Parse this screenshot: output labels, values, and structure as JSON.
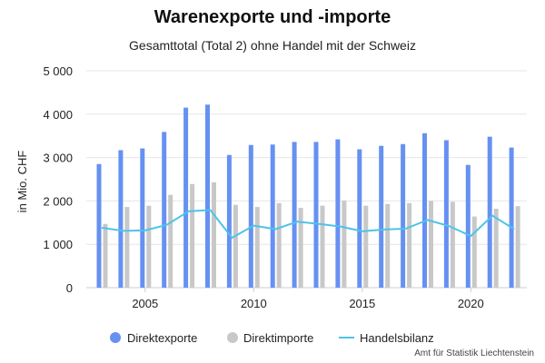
{
  "title": "Warenexporte und -importe",
  "subtitle": "Gesamttotal (Total 2) ohne Handel mit der Schweiz",
  "source": "Amt für Statistik Liechtenstein",
  "colors": {
    "exports": "#6691f2",
    "imports": "#c8c8c8",
    "balance": "#4fc3e8",
    "grid": "#e6e6e6",
    "axis_text": "#222222"
  },
  "chart_data": {
    "type": "bar",
    "ylabel": "in Mio. CHF",
    "xlabel": "",
    "ylim": [
      0,
      5000
    ],
    "yticks": [
      0,
      1000,
      2000,
      3000,
      4000,
      5000
    ],
    "ytick_labels": [
      "0",
      "1 000",
      "2 000",
      "3 000",
      "4 000",
      "5 000"
    ],
    "xticks": [
      2005,
      2010,
      2015,
      2020
    ],
    "grid": true,
    "legend_position": "bottom",
    "categories": [
      2003,
      2004,
      2005,
      2006,
      2007,
      2008,
      2009,
      2010,
      2011,
      2012,
      2013,
      2014,
      2015,
      2016,
      2017,
      2018,
      2019,
      2020,
      2021,
      2022
    ],
    "series": [
      {
        "name": "Direktexporte",
        "type": "bar",
        "values": [
          2850,
          3170,
          3210,
          3590,
          4150,
          4220,
          3060,
          3290,
          3300,
          3360,
          3360,
          3420,
          3190,
          3270,
          3310,
          3560,
          3400,
          2830,
          3480,
          3230
        ]
      },
      {
        "name": "Direktimporte",
        "type": "bar",
        "values": [
          1470,
          1860,
          1890,
          2140,
          2390,
          2430,
          1910,
          1860,
          1950,
          1840,
          1890,
          2010,
          1890,
          1930,
          1950,
          2000,
          1980,
          1640,
          1820,
          1880
        ]
      },
      {
        "name": "Handelsbilanz",
        "type": "line",
        "values": [
          1380,
          1310,
          1320,
          1450,
          1760,
          1790,
          1150,
          1430,
          1350,
          1520,
          1470,
          1410,
          1300,
          1340,
          1360,
          1560,
          1420,
          1190,
          1660,
          1350
        ]
      }
    ]
  }
}
